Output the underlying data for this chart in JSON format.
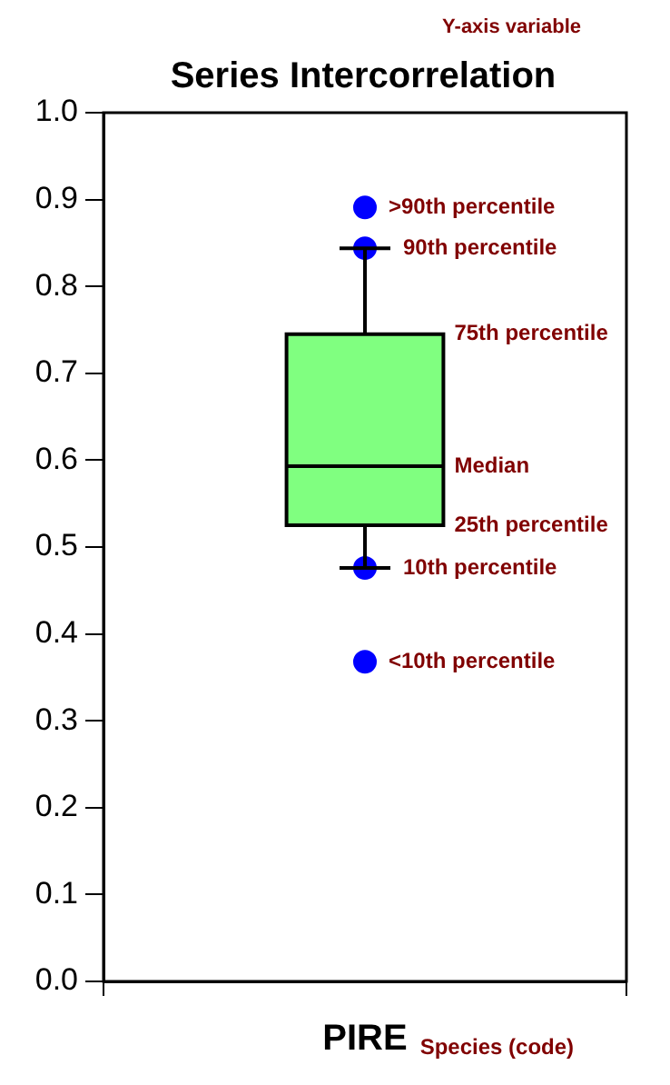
{
  "chart_data": {
    "type": "box",
    "title": "Series Intercorrelation",
    "ylabel": "Y-axis variable",
    "xlabel": "Species (code)",
    "categories": [
      "PIRE"
    ],
    "series": [
      {
        "color": "#80ff80",
        "boxes": [
          {
            "low": 0.476,
            "q1": 0.525,
            "median": 0.593,
            "q3": 0.745,
            "high": 0.844
          }
        ]
      },
      {
        "type": "scatter",
        "color": "#0000ff",
        "x": [
          "PIRE",
          "PIRE",
          "PIRE",
          "PIRE"
        ],
        "values": [
          0.891,
          0.844,
          0.476,
          0.368
        ]
      }
    ],
    "ylim": [
      0,
      1
    ],
    "yticks": [
      {
        "value": 0,
        "label": "0.0"
      },
      {
        "value": 0.1,
        "label": "0.1"
      },
      {
        "value": 0.2,
        "label": "0.2"
      },
      {
        "value": 0.3,
        "label": "0.3"
      },
      {
        "value": 0.4,
        "label": "0.4"
      },
      {
        "value": 0.5,
        "label": "0.5"
      },
      {
        "value": 0.6,
        "label": "0.6"
      },
      {
        "value": 0.7,
        "label": "0.7"
      },
      {
        "value": 0.8,
        "label": "0.8"
      },
      {
        "value": 0.9,
        "label": "0.9"
      },
      {
        "value": 1,
        "label": "1.0"
      }
    ],
    "grid": false,
    "legend": false,
    "marker": "circle",
    "annotations": [
      {
        "text": ">90th percentile",
        "x": "PIRE",
        "y": 0.891
      },
      {
        "text": "90th percentile",
        "x": "PIRE",
        "y": 0.844
      },
      "75th percentile",
      "Median",
      "25th percentile",
      {
        "text": "10th percentile",
        "x": "PIRE",
        "y": 0.476
      },
      {
        "text": "<10th percentile",
        "x": "PIRE",
        "y": 0.368
      }
    ]
  }
}
